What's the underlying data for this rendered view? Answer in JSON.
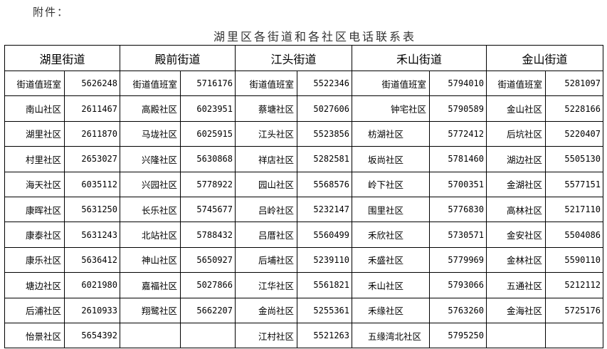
{
  "attachment_label": "附件：",
  "title": "湖里区各街道和各社区电话联系表",
  "streets": [
    {
      "name": "湖里街道",
      "entries": [
        [
          "街道值班室",
          "5626248"
        ],
        [
          "南山社区",
          "2611467"
        ],
        [
          "湖里社区",
          "2611870"
        ],
        [
          "村里社区",
          "2653027"
        ],
        [
          "海天社区",
          "6035112"
        ],
        [
          "康晖社区",
          "5631250"
        ],
        [
          "康泰社区",
          "5631243"
        ],
        [
          "康乐社区",
          "5636412"
        ],
        [
          "塘边社区",
          "6021980"
        ],
        [
          "后浦社区",
          "2610933"
        ],
        [
          "怡景社区",
          "5654392"
        ]
      ]
    },
    {
      "name": "殿前街道",
      "entries": [
        [
          "街道值班室",
          "5716176"
        ],
        [
          "高殿社区",
          "6023951"
        ],
        [
          "马垅社区",
          "6025915"
        ],
        [
          "兴隆社区",
          "5630868"
        ],
        [
          "兴园社区",
          "5778922"
        ],
        [
          "长乐社区",
          "5745677"
        ],
        [
          "北站社区",
          "5788432"
        ],
        [
          "神山社区",
          "5650927"
        ],
        [
          "嘉福社区",
          "5027866"
        ],
        [
          "翔鹭社区",
          "5662207"
        ],
        [
          "",
          ""
        ]
      ]
    },
    {
      "name": "江头街道",
      "entries": [
        [
          "街道值班室",
          "5522346"
        ],
        [
          "蔡塘社区",
          "5027606"
        ],
        [
          "江头社区",
          "5523856"
        ],
        [
          "祥店社区",
          "5282581"
        ],
        [
          "园山社区",
          "5568576"
        ],
        [
          "吕岭社区",
          "5232147"
        ],
        [
          "吕厝社区",
          "5560499"
        ],
        [
          "后埔社区",
          "5239110"
        ],
        [
          "江华社区",
          "5561821"
        ],
        [
          "金尚社区",
          "5255361"
        ],
        [
          "江村社区",
          "5521263"
        ]
      ]
    },
    {
      "name": "禾山街道",
      "entries": [
        [
          "街道值班室",
          "5794010"
        ],
        [
          "钟宅社区",
          "5790589"
        ],
        [
          "枋湖社区",
          "5772412"
        ],
        [
          "坂尚社区",
          "5781460"
        ],
        [
          "岭下社区",
          "5700351"
        ],
        [
          "围里社区",
          "5776830"
        ],
        [
          "禾欣社区",
          "5730571"
        ],
        [
          "禾盛社区",
          "5779969"
        ],
        [
          "禾山社区",
          "5793066"
        ],
        [
          "禾缘社区",
          "5763260"
        ],
        [
          "五缘湾北社区",
          "5795250"
        ]
      ]
    },
    {
      "name": "金山街道",
      "entries": [
        [
          "街道值班室",
          "5281097"
        ],
        [
          "金山社区",
          "5228166"
        ],
        [
          "后坑社区",
          "5220407"
        ],
        [
          "湖边社区",
          "5505130"
        ],
        [
          "金湖社区",
          "5577151"
        ],
        [
          "高林社区",
          "5217110"
        ],
        [
          "金安社区",
          "5504086"
        ],
        [
          "金林社区",
          "5590110"
        ],
        [
          "五通社区",
          "5212112"
        ],
        [
          "金海社区",
          "5725176"
        ],
        [
          "",
          ""
        ]
      ]
    }
  ]
}
